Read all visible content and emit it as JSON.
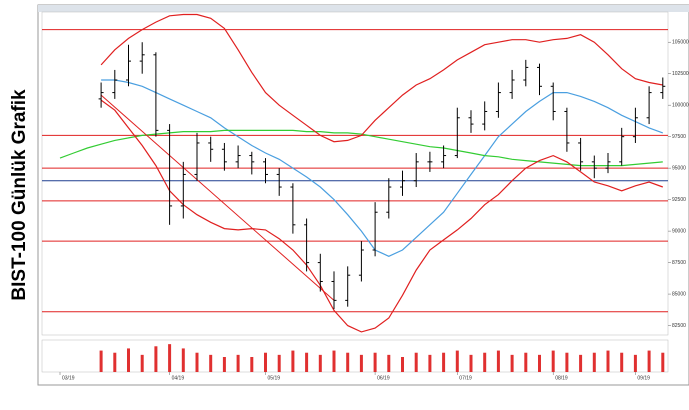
{
  "chart_data": {
    "type": "ohlc",
    "title": "BIST-100 Günlük Grafik",
    "categories": [
      "03/19",
      null,
      null,
      null,
      null,
      null,
      null,
      null,
      "04/19",
      null,
      null,
      null,
      null,
      null,
      null,
      "05/19",
      null,
      null,
      null,
      null,
      null,
      null,
      null,
      "06/19",
      null,
      null,
      null,
      null,
      null,
      "07/19",
      null,
      null,
      null,
      null,
      null,
      null,
      "08/19",
      null,
      null,
      null,
      null,
      null,
      "09/19",
      null,
      null
    ],
    "open": [
      null,
      null,
      null,
      100500,
      101000,
      102000,
      103500,
      104000,
      98000,
      92000,
      94500,
      97000,
      96500,
      95500,
      96000,
      95500,
      94500,
      93500,
      90500,
      87500,
      86000,
      84500,
      86500,
      88500,
      91500,
      93500,
      94000,
      95500,
      95500,
      96000,
      99000,
      98500,
      99500,
      101000,
      102000,
      103000,
      101500,
      99500,
      97000,
      95500,
      95000,
      95500,
      97500,
      99000,
      101000
    ],
    "high": [
      null,
      null,
      null,
      101800,
      102800,
      104800,
      105000,
      104200,
      98500,
      95500,
      97800,
      97500,
      97000,
      96800,
      96300,
      95800,
      95000,
      93800,
      91000,
      88200,
      86800,
      87200,
      89200,
      92300,
      94200,
      94800,
      96200,
      96300,
      96800,
      99800,
      99600,
      100300,
      101800,
      102800,
      103600,
      103300,
      101800,
      99800,
      97400,
      96000,
      96200,
      98200,
      99800,
      101500,
      102200
    ],
    "low": [
      null,
      null,
      null,
      99800,
      100500,
      101500,
      102500,
      97500,
      90500,
      91000,
      94000,
      95500,
      94800,
      95000,
      94500,
      93800,
      92800,
      89800,
      86800,
      85200,
      83800,
      84000,
      86000,
      88000,
      91000,
      92800,
      93500,
      94700,
      95000,
      95800,
      97800,
      98000,
      99000,
      100500,
      101500,
      100800,
      98800,
      96300,
      94800,
      94200,
      94600,
      95200,
      97000,
      98500,
      100500
    ],
    "close": [
      null,
      null,
      null,
      101000,
      102000,
      103500,
      104000,
      98000,
      92000,
      94500,
      97000,
      96500,
      95500,
      96000,
      95500,
      94500,
      93500,
      90500,
      87500,
      86000,
      84500,
      86500,
      88500,
      91500,
      93500,
      94000,
      95500,
      95500,
      96000,
      99000,
      98500,
      99500,
      101000,
      102000,
      103000,
      101500,
      99500,
      97000,
      95500,
      95000,
      95500,
      97500,
      99000,
      101000,
      101500
    ],
    "color": "#000000",
    "lines": [
      {
        "color": "#4a9fe0",
        "values": [
          null,
          null,
          null,
          102000,
          102000,
          101800,
          101500,
          101000,
          100500,
          100000,
          99500,
          99000,
          98200,
          97500,
          96800,
          96200,
          95700,
          95000,
          94300,
          93500,
          92500,
          91300,
          90000,
          88500,
          88000,
          88500,
          89500,
          90500,
          91500,
          93000,
          94500,
          96000,
          97500,
          98500,
          99500,
          100300,
          101000,
          101000,
          100700,
          100300,
          99800,
          99200,
          98700,
          98200,
          97800
        ]
      },
      {
        "color": "#33cc33",
        "values": [
          95800,
          96200,
          96600,
          96900,
          97200,
          97400,
          97600,
          97700,
          97800,
          97900,
          97900,
          97900,
          98000,
          98000,
          98000,
          98000,
          98000,
          98000,
          97900,
          97900,
          97800,
          97800,
          97700,
          97500,
          97300,
          97100,
          96900,
          96700,
          96600,
          96400,
          96200,
          96000,
          95900,
          95700,
          95600,
          95500,
          95400,
          95300,
          95200,
          95200,
          95200,
          95200,
          95300,
          95400,
          95500
        ]
      },
      {
        "color": "#e02020",
        "values": [
          null,
          null,
          null,
          103200,
          104400,
          105300,
          106000,
          106600,
          107100,
          107200,
          107200,
          106900,
          106100,
          104400,
          102600,
          101000,
          100000,
          99200,
          98400,
          97600,
          97100,
          97200,
          97600,
          98800,
          99800,
          100800,
          101600,
          102100,
          102800,
          103600,
          104200,
          104800,
          105000,
          105200,
          105200,
          105000,
          105200,
          105300,
          105600,
          105000,
          104000,
          102900,
          102100,
          101800,
          101600
        ]
      },
      {
        "color": "#e02020",
        "values": [
          null,
          null,
          null,
          100400,
          99600,
          98200,
          96800,
          95200,
          93200,
          92100,
          91300,
          90700,
          90200,
          90100,
          90200,
          90100,
          89400,
          88500,
          87300,
          85700,
          83700,
          82500,
          82000,
          82300,
          83100,
          84900,
          86900,
          88500,
          89300,
          90100,
          91000,
          92100,
          92900,
          94000,
          95000,
          95600,
          96000,
          95500,
          94700,
          93900,
          93600,
          93200,
          93600,
          93900,
          93500
        ]
      }
    ],
    "levels": [
      {
        "value": 106000,
        "color": "#e02020"
      },
      {
        "value": 97600,
        "color": "#e02020"
      },
      {
        "value": 95000,
        "color": "#e02020"
      },
      {
        "value": 94000,
        "color": "#1f3f8f"
      },
      {
        "value": 92400,
        "color": "#e02020"
      },
      {
        "value": 89200,
        "color": "#e02020"
      },
      {
        "value": 83600,
        "color": "#e02020"
      }
    ],
    "trendline": {
      "color": "#e02020",
      "points": [
        [
          3,
          100800
        ],
        [
          20,
          84500
        ]
      ]
    },
    "ylim": [
      81750,
      107400
    ],
    "yticks": [
      82500,
      85000,
      87500,
      90000,
      92500,
      95000,
      97500,
      100000,
      102500,
      105000
    ],
    "volume": {
      "color": "#e03030",
      "ylim": [
        0,
        14
      ],
      "values": [
        null,
        null,
        null,
        10,
        9,
        11,
        8,
        12,
        13,
        11,
        9,
        8,
        7,
        8,
        7,
        9,
        8,
        10,
        9,
        8,
        10,
        9,
        8,
        9,
        8,
        7,
        9,
        8,
        9,
        10,
        8,
        9,
        10,
        8,
        9,
        8,
        10,
        9,
        8,
        9,
        10,
        9,
        8,
        10,
        9
      ]
    }
  }
}
